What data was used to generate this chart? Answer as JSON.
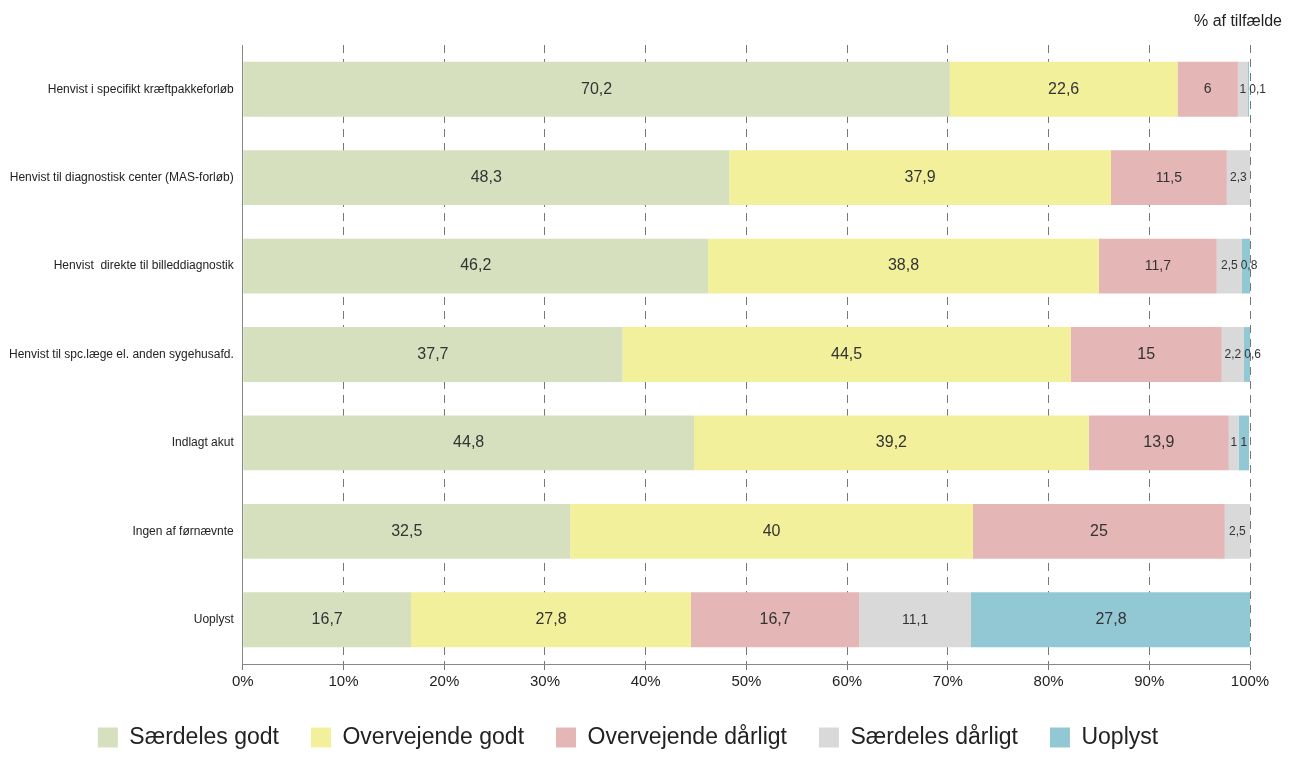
{
  "chart_data": {
    "type": "bar",
    "orientation": "horizontal",
    "stacked": true,
    "categories": [
      "Henvist i specifikt kræftpakkeforløb",
      "Henvist til diagnostisk center (MAS-forløb)",
      "Henvist  direkte til billeddiagnostik",
      "Henvist til spc.læge el. anden sygehusafd.",
      "Indlagt akut",
      "Ingen af førnævnte",
      "Uoplyst"
    ],
    "series": [
      {
        "name": "Særdeles godt",
        "color": "#d6e0bf",
        "values": [
          70.2,
          48.3,
          46.2,
          37.7,
          44.8,
          32.5,
          16.7
        ],
        "value_labels": [
          "70,2",
          "48,3",
          "46,2",
          "37,7",
          "44,8",
          "32,5",
          "16,7"
        ]
      },
      {
        "name": "Overvejende godt",
        "color": "#f3f09c",
        "values": [
          22.6,
          37.9,
          38.8,
          44.5,
          39.2,
          40,
          27.8
        ],
        "value_labels": [
          "22,6",
          "37,9",
          "38,8",
          "44,5",
          "39,2",
          "40",
          "27,8"
        ]
      },
      {
        "name": "Overvejende dårligt",
        "color": "#e4b6b6",
        "values": [
          6,
          11.5,
          11.7,
          15,
          13.9,
          25,
          16.7
        ],
        "value_labels": [
          "6",
          "11,5",
          "11,7",
          "15",
          "13,9",
          "25",
          "16,7"
        ]
      },
      {
        "name": "Særdeles dårligt",
        "color": "#d9d9d9",
        "values": [
          1,
          2.3,
          2.5,
          2.2,
          1,
          2.5,
          11.1
        ],
        "value_labels": [
          "1",
          "2,3",
          "2,5",
          "2,2",
          "1",
          "2,5",
          "11,1"
        ]
      },
      {
        "name": "Uoplyst",
        "color": "#92c8d4",
        "values": [
          0.1,
          null,
          0.8,
          0.6,
          1,
          null,
          27.8
        ],
        "value_labels": [
          "0,1",
          null,
          "0,8",
          "0,6",
          "1",
          null,
          "27,8"
        ]
      }
    ],
    "xlim": [
      0,
      100
    ],
    "xticks": [
      {
        "value": 0,
        "label": "0%"
      },
      {
        "value": 10,
        "label": "10%"
      },
      {
        "value": 20,
        "label": "20%"
      },
      {
        "value": 30,
        "label": "30%"
      },
      {
        "value": 40,
        "label": "40%"
      },
      {
        "value": 50,
        "label": "50%"
      },
      {
        "value": 60,
        "label": "60%"
      },
      {
        "value": 70,
        "label": "70%"
      },
      {
        "value": 80,
        "label": "80%"
      },
      {
        "value": 90,
        "label": "90%"
      },
      {
        "value": 100,
        "label": "100%"
      }
    ],
    "grid": "x",
    "legend": "bottom",
    "annotations": [
      "% af  tilfælde"
    ]
  }
}
